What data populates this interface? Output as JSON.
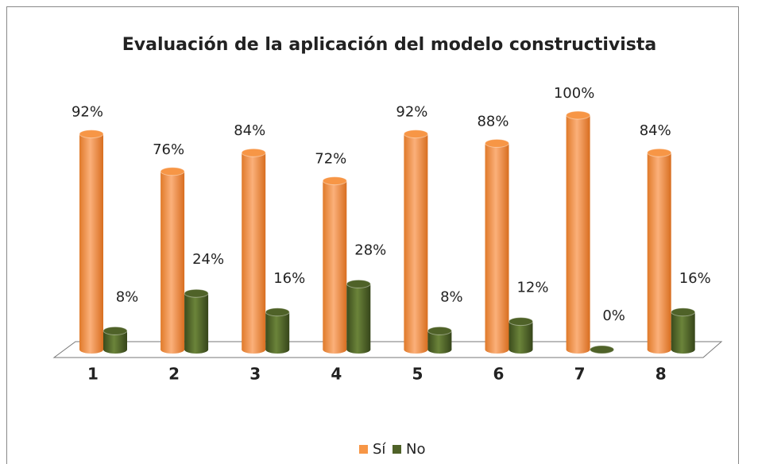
{
  "chart_data": {
    "type": "bar",
    "title": "Evaluación de la aplicación del modelo constructivista",
    "categories": [
      "1",
      "2",
      "3",
      "4",
      "5",
      "6",
      "7",
      "8"
    ],
    "series": [
      {
        "name": "Sí",
        "color": "#f79646",
        "values": [
          92,
          76,
          84,
          72,
          92,
          88,
          100,
          84
        ],
        "value_labels": [
          "92%",
          "76%",
          "84%",
          "72%",
          "92%",
          "88%",
          "100%",
          "84%"
        ]
      },
      {
        "name": "No",
        "color": "#4f6228",
        "values": [
          8,
          24,
          16,
          28,
          8,
          12,
          0,
          16
        ],
        "value_labels": [
          "8%",
          "24%",
          "16%",
          "28%",
          "8%",
          "12%",
          "0%",
          "16%"
        ]
      }
    ],
    "ylim": [
      0,
      100
    ],
    "legend": "bottom"
  }
}
